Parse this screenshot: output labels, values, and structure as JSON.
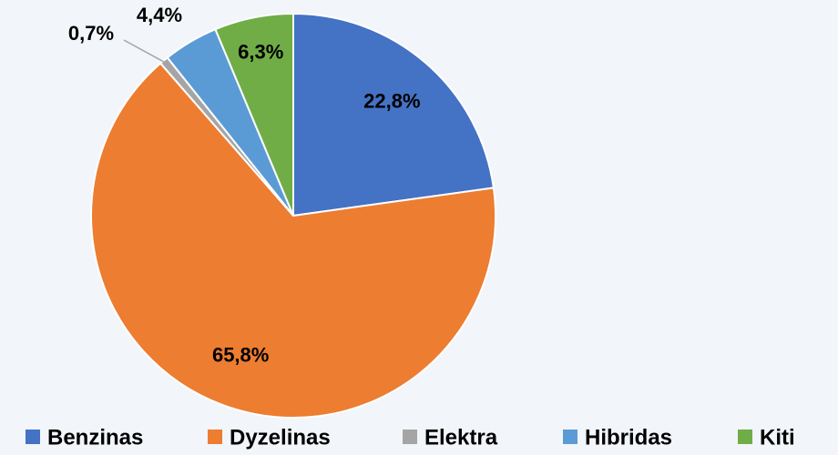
{
  "chart_data": {
    "type": "pie",
    "categories": [
      "Benzinas",
      "Dyzelinas",
      "Elektra",
      "Hibridas",
      "Kiti"
    ],
    "values": [
      22.8,
      65.8,
      0.7,
      4.4,
      6.3
    ],
    "value_labels": [
      "22,8%",
      "65,8%",
      "0,7%",
      "4,4%",
      "6,3%"
    ],
    "colors": [
      "#4472c4",
      "#ed7d31",
      "#a5a5a5",
      "#5b9bd5",
      "#70ad47"
    ],
    "legend": "bottom"
  }
}
